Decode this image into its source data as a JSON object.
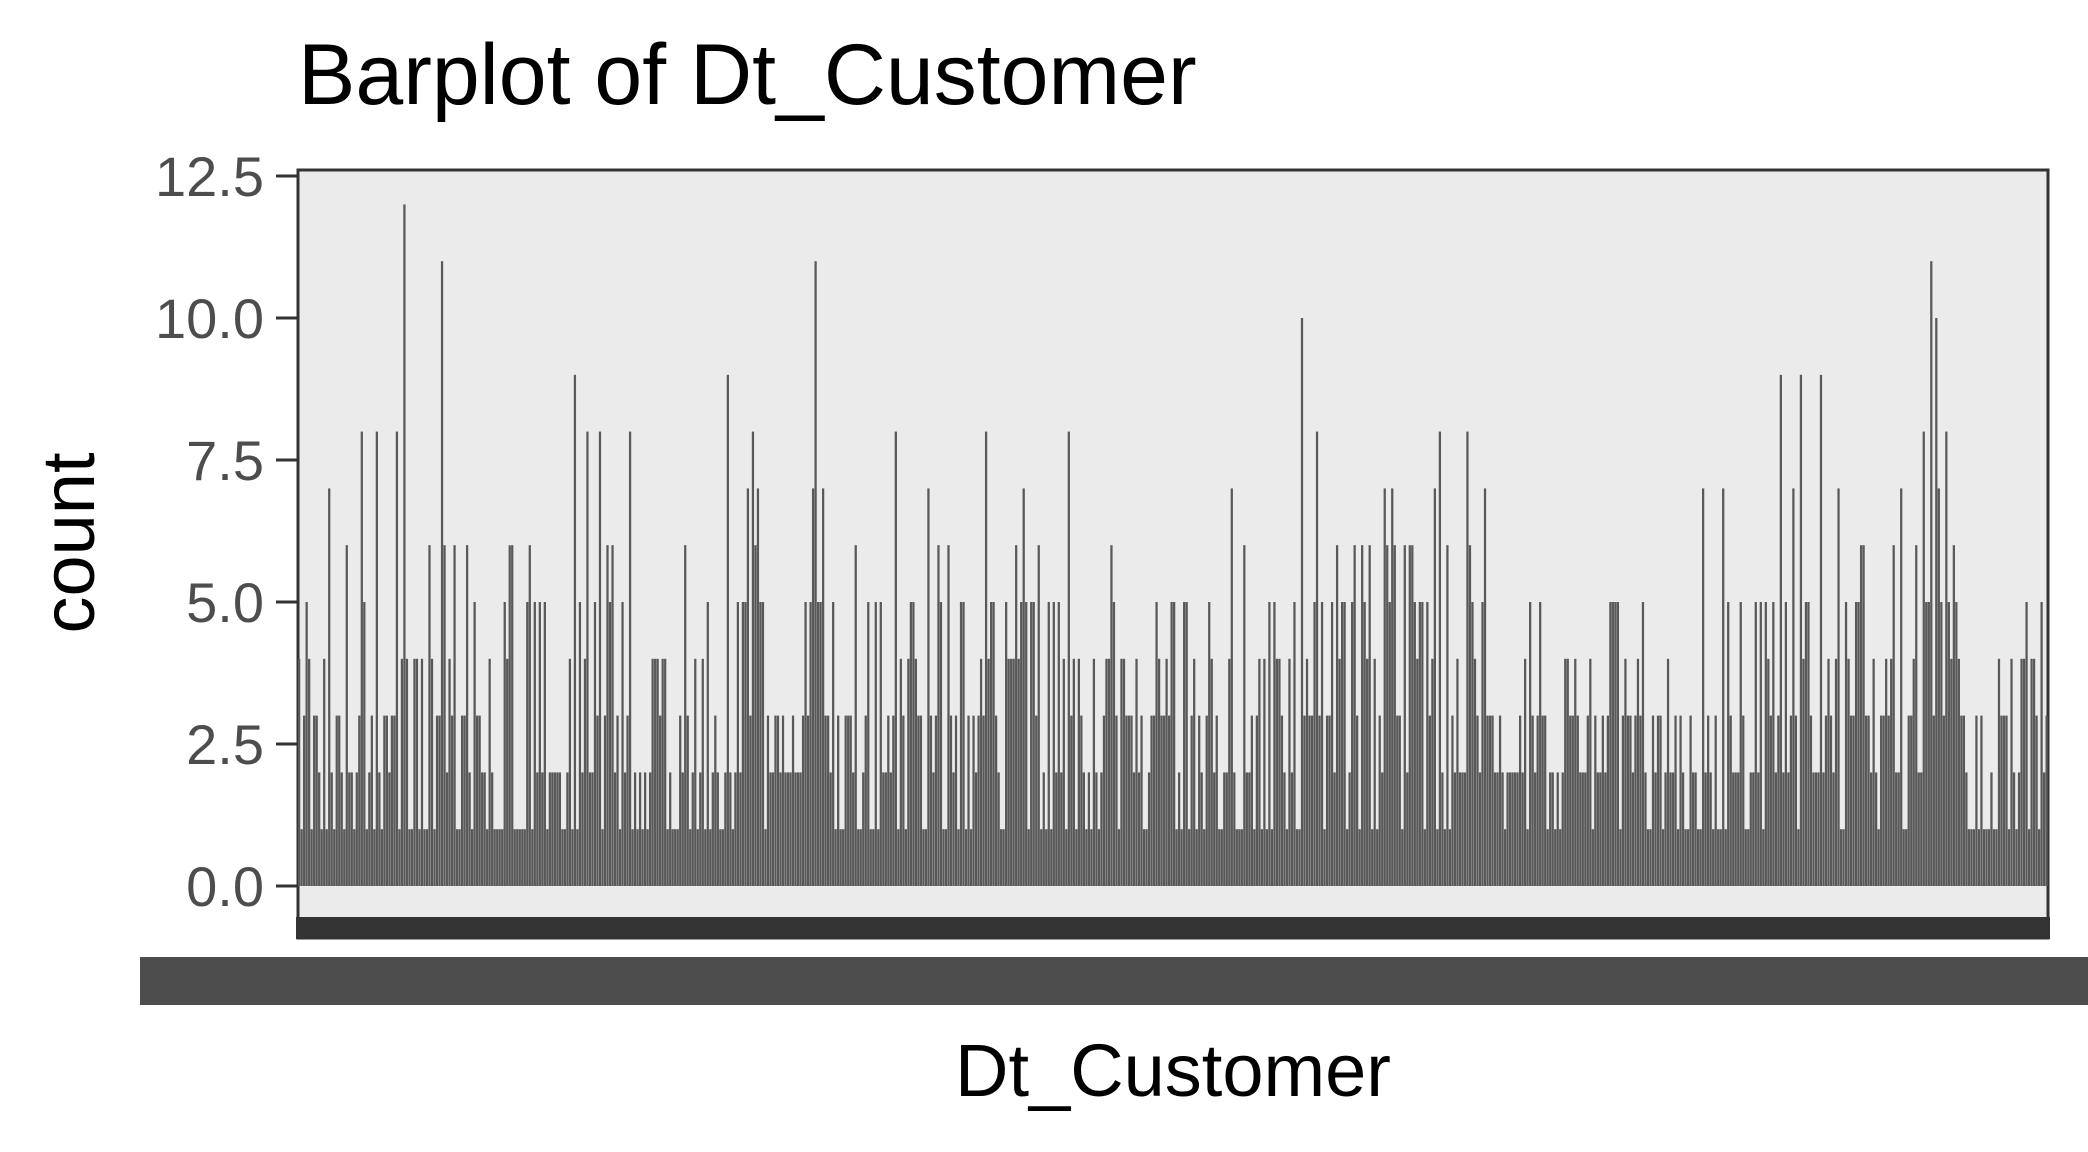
{
  "chart_data": {
    "type": "bar",
    "title": "Barplot of Dt_Customer",
    "xlabel": "Dt_Customer",
    "ylabel": "count",
    "ylim": [
      0,
      12.5
    ],
    "yticks": [
      "0.0",
      "2.5",
      "5.0",
      "7.5",
      "10.0",
      "12.5"
    ],
    "grid": false,
    "legend": "none",
    "x_tick_labels": "overlapping date labels (illegible)",
    "values": [
      4,
      1,
      3,
      5,
      4,
      1,
      3,
      3,
      2,
      1,
      4,
      1,
      7,
      2,
      1,
      3,
      3,
      2,
      1,
      6,
      2,
      2,
      1,
      2,
      3,
      8,
      5,
      1,
      2,
      3,
      1,
      8,
      2,
      1,
      3,
      3,
      2,
      3,
      3,
      8,
      1,
      4,
      12,
      4,
      1,
      1,
      4,
      4,
      1,
      4,
      1,
      1,
      6,
      4,
      1,
      3,
      3,
      11,
      6,
      2,
      4,
      3,
      6,
      1,
      1,
      3,
      3,
      6,
      2,
      1,
      5,
      3,
      3,
      2,
      2,
      1,
      4,
      2,
      1,
      1,
      1,
      1,
      5,
      4,
      6,
      6,
      1,
      1,
      1,
      1,
      1,
      5,
      6,
      1,
      5,
      2,
      5,
      2,
      5,
      1,
      2,
      2,
      2,
      2,
      2,
      1,
      1,
      2,
      4,
      1,
      9,
      1,
      5,
      2,
      4,
      8,
      2,
      2,
      5,
      3,
      8,
      1,
      3,
      6,
      5,
      6,
      2,
      3,
      1,
      5,
      2,
      3,
      8,
      1,
      2,
      1,
      2,
      1,
      2,
      1,
      2,
      4,
      4,
      4,
      3,
      4,
      4,
      1,
      2,
      1,
      1,
      1,
      3,
      2,
      6,
      3,
      1,
      2,
      4,
      1,
      2,
      4,
      1,
      5,
      1,
      2,
      3,
      2,
      1,
      1,
      2,
      9,
      2,
      1,
      2,
      5,
      2,
      5,
      5,
      7,
      3,
      8,
      6,
      7,
      5,
      5,
      1,
      3,
      2,
      2,
      3,
      3,
      2,
      3,
      2,
      2,
      2,
      3,
      2,
      2,
      2,
      3,
      5,
      3,
      5,
      7,
      11,
      5,
      5,
      7,
      3,
      3,
      2,
      5,
      1,
      3,
      1,
      1,
      3,
      3,
      3,
      2,
      6,
      1,
      1,
      2,
      3,
      5,
      1,
      1,
      5,
      1,
      5,
      2,
      2,
      3,
      2,
      3,
      8,
      1,
      4,
      3,
      1,
      4,
      5,
      5,
      4,
      3,
      3,
      1,
      1,
      7,
      3,
      2,
      3,
      6,
      5,
      1,
      1,
      6,
      3,
      2,
      3,
      1,
      5,
      5,
      1,
      3,
      1,
      3,
      2,
      3,
      4,
      3,
      8,
      4,
      5,
      5,
      3,
      2,
      1,
      1,
      5,
      4,
      4,
      4,
      6,
      4,
      5,
      7,
      5,
      1,
      5,
      5,
      3,
      6,
      1,
      2,
      1,
      5,
      1,
      5,
      2,
      5,
      2,
      4,
      1,
      8,
      3,
      4,
      1,
      4,
      3,
      2,
      1,
      2,
      1,
      4,
      2,
      1,
      2,
      3,
      4,
      4,
      6,
      5,
      3,
      1,
      4,
      4,
      3,
      3,
      3,
      2,
      4,
      2,
      3,
      1,
      1,
      2,
      3,
      3,
      5,
      4,
      3,
      3,
      4,
      3,
      5,
      5,
      1,
      2,
      1,
      5,
      5,
      1,
      3,
      4,
      1,
      3,
      2,
      1,
      3,
      5,
      4,
      2,
      3,
      1,
      1,
      2,
      2,
      4,
      7,
      2,
      1,
      1,
      1,
      6,
      2,
      2,
      3,
      1,
      3,
      4,
      1,
      4,
      1,
      5,
      1,
      5,
      4,
      4,
      3,
      2,
      1,
      4,
      2,
      5,
      1,
      1,
      10,
      3,
      4,
      3,
      3,
      5,
      8,
      3,
      5,
      1,
      3,
      3,
      5,
      2,
      6,
      4,
      5,
      5,
      1,
      2,
      5,
      6,
      3,
      1,
      6,
      5,
      4,
      6,
      1,
      4,
      1,
      3,
      2,
      7,
      6,
      5,
      7,
      6,
      3,
      3,
      1,
      6,
      2,
      6,
      6,
      5,
      4,
      5,
      5,
      1,
      5,
      3,
      4,
      7,
      1,
      8,
      2,
      1,
      6,
      1,
      3,
      2,
      4,
      2,
      2,
      2,
      8,
      6,
      5,
      4,
      3,
      2,
      5,
      7,
      3,
      3,
      3,
      2,
      2,
      3,
      2,
      1,
      2,
      2,
      2,
      2,
      2,
      3,
      2,
      4,
      1,
      5,
      3,
      2,
      3,
      5,
      3,
      3,
      1,
      2,
      2,
      1,
      2,
      1,
      2,
      4,
      4,
      3,
      3,
      4,
      3,
      2,
      2,
      2,
      3,
      4,
      1,
      3,
      2,
      2,
      3,
      2,
      3,
      5,
      5,
      5,
      5,
      1,
      3,
      4,
      3,
      3,
      2,
      3,
      4,
      3,
      5,
      2,
      1,
      1,
      3,
      2,
      3,
      3,
      1,
      2,
      4,
      2,
      2,
      3,
      1,
      3,
      2,
      1,
      1,
      3,
      2,
      2,
      1,
      1,
      7,
      2,
      3,
      2,
      1,
      3,
      1,
      1,
      7,
      1,
      5,
      3,
      2,
      2,
      2,
      5,
      3,
      1,
      1,
      2,
      2,
      5,
      2,
      5,
      1,
      5,
      4,
      3,
      5,
      2,
      3,
      9,
      2,
      5,
      2,
      3,
      7,
      3,
      1,
      9,
      4,
      5,
      5,
      3,
      2,
      2,
      2,
      9,
      2,
      3,
      4,
      3,
      2,
      4,
      7,
      1,
      1,
      5,
      4,
      3,
      3,
      5,
      5,
      6,
      6,
      3,
      3,
      2,
      4,
      2,
      1,
      3,
      3,
      4,
      3,
      4,
      6,
      2,
      2,
      7,
      1,
      1,
      3,
      3,
      4,
      6,
      2,
      2,
      8,
      5,
      5,
      11,
      3,
      10,
      7,
      5,
      3,
      8,
      5,
      4,
      6,
      5,
      4,
      3,
      3,
      2,
      1,
      1,
      1,
      3,
      1,
      3,
      1,
      1,
      1,
      2,
      1,
      1,
      4,
      3,
      3,
      3,
      1,
      4,
      2,
      1,
      2,
      4,
      4,
      5,
      1,
      4,
      4,
      3,
      1,
      5,
      2,
      3
    ]
  }
}
